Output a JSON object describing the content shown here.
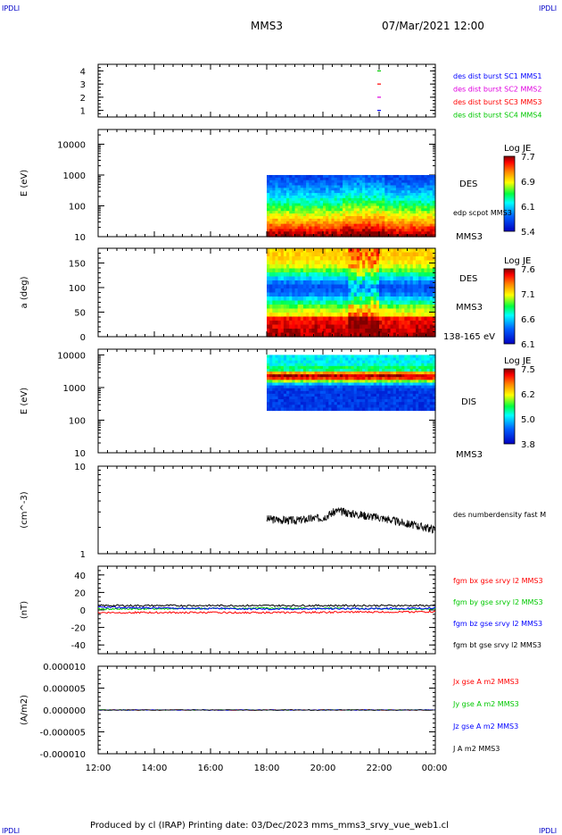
{
  "corners": {
    "top_left": "IPDLI",
    "top_right": "IPDLI",
    "bottom_left": "IPDLI",
    "bottom_right": "IPDLI"
  },
  "header": {
    "spacecraft": "MMS3",
    "date": "07/Mar/2021 12:00"
  },
  "footer": {
    "text": "Produced by cl (IRAP)   Printing date: 03/Dec/2023   mms_mms3_srvy_vue_web1.cl"
  },
  "colors": {
    "blue": "#0000ff",
    "magenta": "#e000e0",
    "red": "#ff0000",
    "green": "#00c800",
    "black": "#000000"
  },
  "chart_data": [
    {
      "type": "scatter",
      "id": "burst",
      "yticks": [
        "1",
        "2",
        "3",
        "4"
      ],
      "ylim": [
        0.5,
        4.5
      ],
      "labels": [
        {
          "text": "des dist burst SC1 MMS1",
          "color": "#0000ff"
        },
        {
          "text": "des dist burst SC2 MMS2",
          "color": "#e000e0"
        },
        {
          "text": "des dist burst SC3 MMS3",
          "color": "#ff0000"
        },
        {
          "text": "des dist burst SC4 MMS4",
          "color": "#00c800"
        }
      ],
      "marks": [
        {
          "x": "22:00",
          "y": 4,
          "color": "#00c800"
        },
        {
          "x": "22:00",
          "y": 3,
          "color": "#ff0000"
        },
        {
          "x": "22:00",
          "y": 2,
          "color": "#e000e0"
        },
        {
          "x": "22:00",
          "y": 1,
          "color": "#0000ff"
        }
      ]
    },
    {
      "type": "heatmap",
      "id": "des_energy",
      "ylabel": "E (eV)",
      "yticks": [
        "10",
        "100",
        "1000",
        "10000"
      ],
      "scale": "log",
      "ylim": [
        10,
        30000
      ],
      "data_x_range": [
        "18:00",
        "00:00"
      ],
      "data_y_range": [
        10,
        1000
      ],
      "colorbar": {
        "title": "Log JE",
        "ticks": [
          "7.7",
          "6.9",
          "6.1",
          "5.4"
        ]
      },
      "side_labels": [
        "DES",
        "edp scpot MMS3",
        "MMS3"
      ]
    },
    {
      "type": "heatmap",
      "id": "des_pitch",
      "ylabel": "a (deg)",
      "yticks": [
        "0",
        "50",
        "100",
        "150"
      ],
      "ylim": [
        0,
        180
      ],
      "data_x_range": [
        "18:00",
        "00:00"
      ],
      "colorbar": {
        "title": "Log JE",
        "ticks": [
          "7.6",
          "7.1",
          "6.6",
          "6.1"
        ]
      },
      "side_labels": [
        "DES",
        "MMS3",
        "138-165 eV"
      ]
    },
    {
      "type": "heatmap",
      "id": "dis_energy",
      "ylabel": "E (eV)",
      "yticks": [
        "10",
        "100",
        "1000",
        "10000"
      ],
      "scale": "log",
      "ylim": [
        10,
        15000
      ],
      "data_x_range": [
        "18:00",
        "00:00"
      ],
      "data_y_range": [
        200,
        10000
      ],
      "colorbar": {
        "title": "Log JE",
        "ticks": [
          "7.5",
          "6.2",
          "5.0",
          "3.8"
        ]
      },
      "side_labels": [
        "DIS",
        "MMS3"
      ]
    },
    {
      "type": "line",
      "id": "density",
      "ylabel": "(cm^-3)",
      "yticks": [
        "1",
        "10"
      ],
      "scale": "log",
      "ylim": [
        1,
        10
      ],
      "series": [
        {
          "name": "des numberdensity fast M",
          "color": "#000000",
          "x": [
            "18:00",
            "19:00",
            "20:00",
            "20:30",
            "21:00",
            "22:00",
            "23:00",
            "00:00"
          ],
          "y": [
            2.5,
            2.4,
            2.6,
            3.1,
            2.9,
            2.6,
            2.2,
            1.9
          ]
        }
      ]
    },
    {
      "type": "line",
      "id": "bfield",
      "ylabel": "(nT)",
      "yticks": [
        "-40",
        "-20",
        "0",
        "20",
        "40"
      ],
      "ylim": [
        -50,
        50
      ],
      "series": [
        {
          "name": "fgm bx gse srvy l2 MMS3",
          "color": "#ff0000",
          "x": [
            "12:00",
            "18:00",
            "00:00"
          ],
          "y": [
            -3,
            -3,
            -2
          ]
        },
        {
          "name": "fgm by gse srvy l2 MMS3",
          "color": "#00c800",
          "x": [
            "12:00",
            "18:00",
            "00:00"
          ],
          "y": [
            1,
            2,
            1
          ]
        },
        {
          "name": "fgm bz gse srvy l2 MMS3",
          "color": "#0000ff",
          "x": [
            "12:00",
            "18:00",
            "00:00"
          ],
          "y": [
            3,
            1,
            2
          ]
        },
        {
          "name": "fgm bt gse srvy l2 MMS3",
          "color": "#000000",
          "x": [
            "12:00",
            "18:00",
            "00:00"
          ],
          "y": [
            5,
            5,
            5
          ]
        }
      ]
    },
    {
      "type": "line",
      "id": "current",
      "ylabel": "(A/m2)",
      "yticks": [
        "-0.000010",
        "-0.000005",
        "0.000000",
        "0.000005",
        "0.000010"
      ],
      "ylim": [
        -1e-05,
        1e-05
      ],
      "series": [
        {
          "name": "Jx gse A m2 MMS3",
          "color": "#ff0000",
          "x": [
            "12:00",
            "00:00"
          ],
          "y": [
            0,
            0
          ]
        },
        {
          "name": "Jy gse A m2 MMS3",
          "color": "#00c800",
          "x": [
            "12:00",
            "00:00"
          ],
          "y": [
            0,
            0
          ]
        },
        {
          "name": "Jz gse A m2 MMS3",
          "color": "#0000ff",
          "x": [
            "12:00",
            "00:00"
          ],
          "y": [
            0,
            0
          ]
        },
        {
          "name": "J A m2 MMS3",
          "color": "#000000",
          "x": [
            "12:00",
            "00:00"
          ],
          "y": [
            0,
            0
          ]
        }
      ]
    }
  ],
  "x_axis": {
    "ticks": [
      "12:00",
      "14:00",
      "16:00",
      "18:00",
      "20:00",
      "22:00",
      "00:00"
    ],
    "range": [
      "12:00",
      "00:00"
    ]
  }
}
